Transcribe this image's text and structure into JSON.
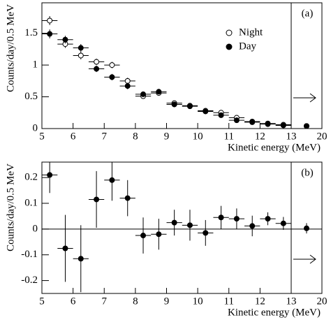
{
  "chart_data": [
    {
      "type": "errorbar",
      "panel_label": "(a)",
      "ylabel": "Counts/day/0.5 MeV",
      "xlabel": "Kinetic energy (MeV)",
      "x": [
        5.25,
        5.75,
        6.25,
        6.75,
        7.25,
        7.75,
        8.25,
        8.75,
        9.25,
        9.75,
        10.25,
        10.75,
        11.25,
        11.75,
        12.25,
        12.75,
        16.5
      ],
      "xerr": [
        0.25,
        0.25,
        0.25,
        0.25,
        0.25,
        0.25,
        0.25,
        0.25,
        0.25,
        0.25,
        0.25,
        0.25,
        0.25,
        0.25,
        0.25,
        0.25,
        0
      ],
      "series": [
        {
          "name": "Night",
          "marker": "open",
          "color": "#000000",
          "values": [
            1.7,
            1.33,
            1.15,
            1.05,
            1.0,
            0.75,
            0.51,
            0.56,
            0.4,
            0.36,
            0.28,
            0.25,
            0.17,
            0.11,
            0.08,
            0.06,
            0.04
          ],
          "errors": [
            0.07,
            0.06,
            0.06,
            0.05,
            0.05,
            0.05,
            0.04,
            0.04,
            0.03,
            0.03,
            0.03,
            0.03,
            0.02,
            0.02,
            0.02,
            0.02,
            0.01
          ]
        },
        {
          "name": "Day",
          "marker": "filled",
          "color": "#000000",
          "values": [
            1.49,
            1.4,
            1.27,
            0.94,
            0.81,
            0.67,
            0.54,
            0.58,
            0.38,
            0.35,
            0.27,
            0.21,
            0.13,
            0.1,
            0.07,
            0.05,
            0.04
          ],
          "errors": [
            0.07,
            0.06,
            0.06,
            0.05,
            0.05,
            0.05,
            0.04,
            0.04,
            0.03,
            0.03,
            0.03,
            0.03,
            0.02,
            0.02,
            0.02,
            0.02,
            0.01
          ]
        }
      ],
      "xlim": [
        5,
        20
      ],
      "xbreak": 13,
      "xticks": [
        5,
        6,
        7,
        8,
        9,
        10,
        11,
        12,
        13,
        20
      ],
      "ylim": [
        0,
        1.98
      ],
      "yticks": [
        0,
        0.5,
        1,
        1.5
      ],
      "legend": "upper right"
    },
    {
      "type": "errorbar",
      "panel_label": "(b)",
      "ylabel": "Counts/day/0.5 MeV",
      "xlabel": "Kinetic energy (MeV)",
      "x": [
        5.25,
        5.75,
        6.25,
        6.75,
        7.25,
        7.75,
        8.25,
        8.75,
        9.25,
        9.75,
        10.25,
        10.75,
        11.25,
        11.75,
        12.25,
        12.75,
        16.5
      ],
      "xerr": [
        0.25,
        0.25,
        0.25,
        0.25,
        0.25,
        0.25,
        0.25,
        0.25,
        0.25,
        0.25,
        0.25,
        0.25,
        0.25,
        0.25,
        0.25,
        0.25,
        0
      ],
      "series": [
        {
          "marker": "filled",
          "color": "#000000",
          "values": [
            0.21,
            -0.075,
            -0.115,
            0.115,
            0.19,
            0.12,
            -0.025,
            -0.02,
            0.025,
            0.015,
            -0.015,
            0.045,
            0.04,
            0.012,
            0.04,
            0.022,
            0.003
          ],
          "errors": [
            0.07,
            0.13,
            0.13,
            0.11,
            0.08,
            0.07,
            0.07,
            0.06,
            0.05,
            0.06,
            0.05,
            0.045,
            0.04,
            0.04,
            0.025,
            0.025,
            0.02
          ]
        }
      ],
      "xlim": [
        5,
        20
      ],
      "xbreak": 13,
      "xticks": [
        5,
        6,
        7,
        8,
        9,
        10,
        11,
        12,
        13,
        20
      ],
      "ylim": [
        -0.25,
        0.26
      ],
      "yticks": [
        -0.2,
        -0.1,
        0,
        0.1,
        0.2
      ],
      "zero_line": true
    }
  ]
}
